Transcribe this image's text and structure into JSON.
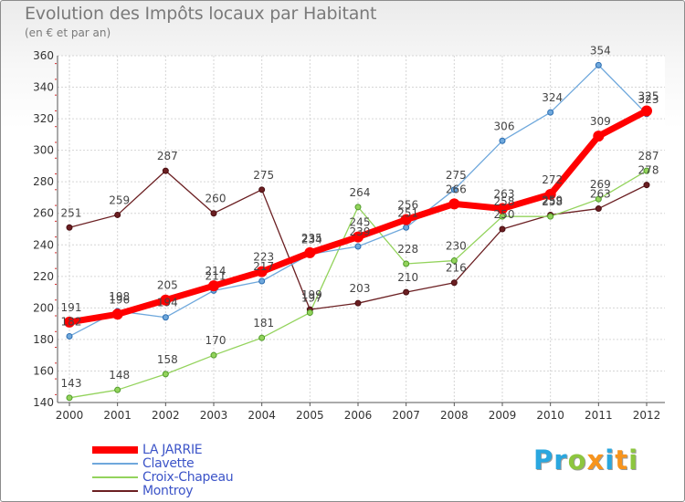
{
  "header": {
    "title": "Evolution des Impôts locaux par Habitant",
    "subtitle": "(en € et par an)"
  },
  "chart_data": {
    "type": "line",
    "title": "Evolution des Impôts locaux par Habitant",
    "subtitle": "(en € et par an)",
    "xlabel": "",
    "ylabel": "",
    "x": [
      2000,
      2001,
      2002,
      2003,
      2004,
      2005,
      2006,
      2007,
      2008,
      2009,
      2010,
      2011,
      2012
    ],
    "ylim": [
      140,
      360
    ],
    "yticks": [
      140,
      160,
      180,
      200,
      220,
      240,
      260,
      280,
      300,
      320,
      340,
      360
    ],
    "grid": true,
    "legend_position": "bottom-left",
    "series": [
      {
        "name": "LA JARRIE",
        "color": "#ff0000",
        "values": [
          191,
          196,
          205,
          214,
          223,
          235,
          245,
          256,
          266,
          263,
          272,
          309,
          325
        ]
      },
      {
        "name": "Clavette",
        "color": "#6fa8dc",
        "values": [
          182,
          198,
          194,
          211,
          217,
          234,
          239,
          251,
          275,
          306,
          324,
          354,
          323
        ]
      },
      {
        "name": "Croix-Chapeau",
        "color": "#93d35c",
        "values": [
          143,
          148,
          158,
          170,
          181,
          197,
          264,
          228,
          230,
          258,
          258,
          269,
          287
        ]
      },
      {
        "name": "Montroy",
        "color": "#6b1f22",
        "values": [
          251,
          259,
          287,
          260,
          275,
          199,
          203,
          210,
          216,
          250,
          259,
          263,
          278
        ]
      }
    ]
  },
  "branding": {
    "logo_letters": [
      "P",
      "r",
      "o",
      "x",
      "i",
      "t",
      "i"
    ],
    "logo_colors": [
      "#2aa7df",
      "#2aa7df",
      "#8dc63f",
      "#f7941d",
      "#2aa7df",
      "#f7941d",
      "#8dc63f"
    ]
  }
}
